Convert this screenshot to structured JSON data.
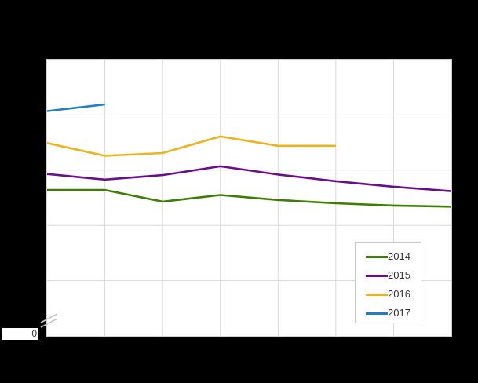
{
  "figure": {
    "origin_label": "0",
    "has_axis_break": true
  },
  "chart_data": {
    "type": "line",
    "title": "",
    "xlabel": "",
    "ylabel": "",
    "x_axis": {
      "tick_labels_visible": false,
      "columns": 7
    },
    "y_axis": {
      "tick_labels_visible": false,
      "origin_label": "0",
      "axis_break_near_zero": true,
      "gridline_rows": 5,
      "units_note": "axis unlabeled; values measured in gridline units above plot bottom"
    },
    "grid": true,
    "legend_position": "bottom-right",
    "series": [
      {
        "name": "2014",
        "color": "#3e7d04",
        "values": [
          2.64,
          2.64,
          2.43,
          2.55,
          2.46,
          2.4,
          2.36,
          2.34
        ]
      },
      {
        "name": "2015",
        "color": "#6a0f8c",
        "values": [
          2.93,
          2.83,
          2.91,
          3.07,
          2.92,
          2.8,
          2.7,
          2.62
        ]
      },
      {
        "name": "2016",
        "color": "#edb31e",
        "values": [
          3.49,
          3.26,
          3.31,
          3.61,
          3.44,
          3.44
        ]
      },
      {
        "name": "2017",
        "color": "#1f7fca",
        "values": [
          4.07,
          4.19
        ]
      }
    ],
    "legend_entries": [
      "2014",
      "2015",
      "2016",
      "2017"
    ]
  },
  "colors": {
    "frame_background": "#000000",
    "plot_background": "#ffffff",
    "gridline": "#d9d9d9",
    "plot_border": "#d0d0d0",
    "legend_border": "#c8c8c8",
    "legend_background": "#ffffff",
    "text": "#333333",
    "axis_break": "#c6c6c6",
    "zero_box_background": "#ffffff"
  }
}
